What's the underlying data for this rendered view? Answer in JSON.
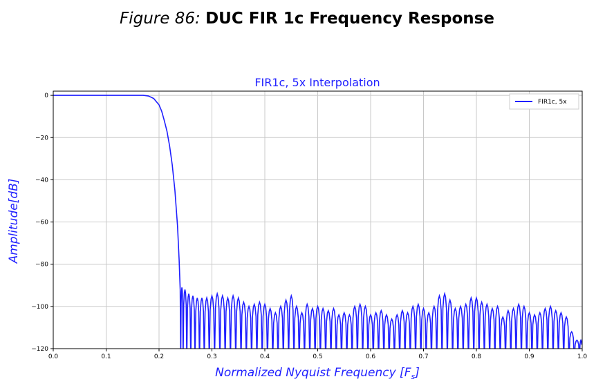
{
  "caption": {
    "figure_number": "Figure 86:",
    "figure_title": "DUC FIR 1c Frequency Response"
  },
  "colors": {
    "series": "#1f1fff",
    "grid": "#c8c8c8",
    "axis_label": "#2222ff"
  },
  "chart_data": {
    "type": "line",
    "title": "FIR1c, 5x Interpolation",
    "xlabel": "Normalized Nyquist Frequency [F",
    "xlabel_sub": "s",
    "xlabel_end": "]",
    "ylabel": "Amplitude[dB]",
    "xlim": [
      0.0,
      1.0
    ],
    "ylim": [
      -120,
      2
    ],
    "xticks": [
      0.0,
      0.1,
      0.2,
      0.3,
      0.4,
      0.5,
      0.6,
      0.7,
      0.8,
      0.9,
      1.0
    ],
    "xtick_labels": [
      "0.0",
      "0.1",
      "0.2",
      "0.3",
      "0.4",
      "0.5",
      "0.6",
      "0.7",
      "0.8",
      "0.9",
      "1.0"
    ],
    "yticks": [
      0,
      -20,
      -40,
      -60,
      -80,
      -100,
      -120
    ],
    "ytick_labels": [
      "0",
      "−20",
      "−40",
      "−60",
      "−80",
      "−100",
      "−120"
    ],
    "grid": true,
    "legend_position": "top-right",
    "series": [
      {
        "name": "FIR1c, 5x",
        "passband": {
          "x": [
            0.0,
            0.1,
            0.17,
            0.18
          ],
          "y": [
            0,
            0,
            0,
            -0.3
          ]
        },
        "transition": {
          "x": [
            0.18,
            0.19,
            0.2,
            0.205,
            0.21,
            0.215,
            0.22,
            0.225,
            0.23,
            0.235,
            0.238,
            0.24
          ],
          "y": [
            -0.3,
            -1.5,
            -4.5,
            -7.5,
            -12,
            -17,
            -24,
            -33,
            -45,
            -62,
            -78,
            -92
          ]
        },
        "stopband_peaks": {
          "x": [
            0.242,
            0.249,
            0.256,
            0.264,
            0.272,
            0.281,
            0.29,
            0.3,
            0.31,
            0.32,
            0.33,
            0.34,
            0.35,
            0.36,
            0.37,
            0.38,
            0.39,
            0.4,
            0.41,
            0.42,
            0.43,
            0.44,
            0.45,
            0.46,
            0.47,
            0.48,
            0.49,
            0.5,
            0.51,
            0.52,
            0.53,
            0.54,
            0.55,
            0.56,
            0.57,
            0.58,
            0.59,
            0.6,
            0.61,
            0.62,
            0.63,
            0.64,
            0.65,
            0.66,
            0.67,
            0.68,
            0.69,
            0.7,
            0.71,
            0.72,
            0.73,
            0.74,
            0.75,
            0.76,
            0.77,
            0.78,
            0.79,
            0.8,
            0.81,
            0.82,
            0.83,
            0.84,
            0.85,
            0.86,
            0.87,
            0.88,
            0.89,
            0.9,
            0.91,
            0.92,
            0.93,
            0.94,
            0.95,
            0.96,
            0.97,
            0.98,
            0.99,
            1.0
          ],
          "y": [
            -91,
            -92,
            -94,
            -95,
            -96,
            -96,
            -96,
            -95,
            -94,
            -95,
            -96,
            -95,
            -96,
            -98,
            -100,
            -99,
            -98,
            -99,
            -101,
            -103,
            -100,
            -97,
            -95,
            -100,
            -103,
            -99,
            -101,
            -100,
            -101,
            -102,
            -101,
            -104,
            -103,
            -104,
            -100,
            -99,
            -100,
            -104,
            -103,
            -102,
            -104,
            -106,
            -104,
            -102,
            -103,
            -100,
            -99,
            -101,
            -103,
            -100,
            -95,
            -94,
            -97,
            -101,
            -100,
            -99,
            -96,
            -96,
            -98,
            -99,
            -101,
            -100,
            -105,
            -102,
            -101,
            -99,
            -100,
            -103,
            -104,
            -103,
            -101,
            -100,
            -102,
            -103,
            -105,
            -112,
            -116,
            -116
          ]
        }
      }
    ]
  }
}
